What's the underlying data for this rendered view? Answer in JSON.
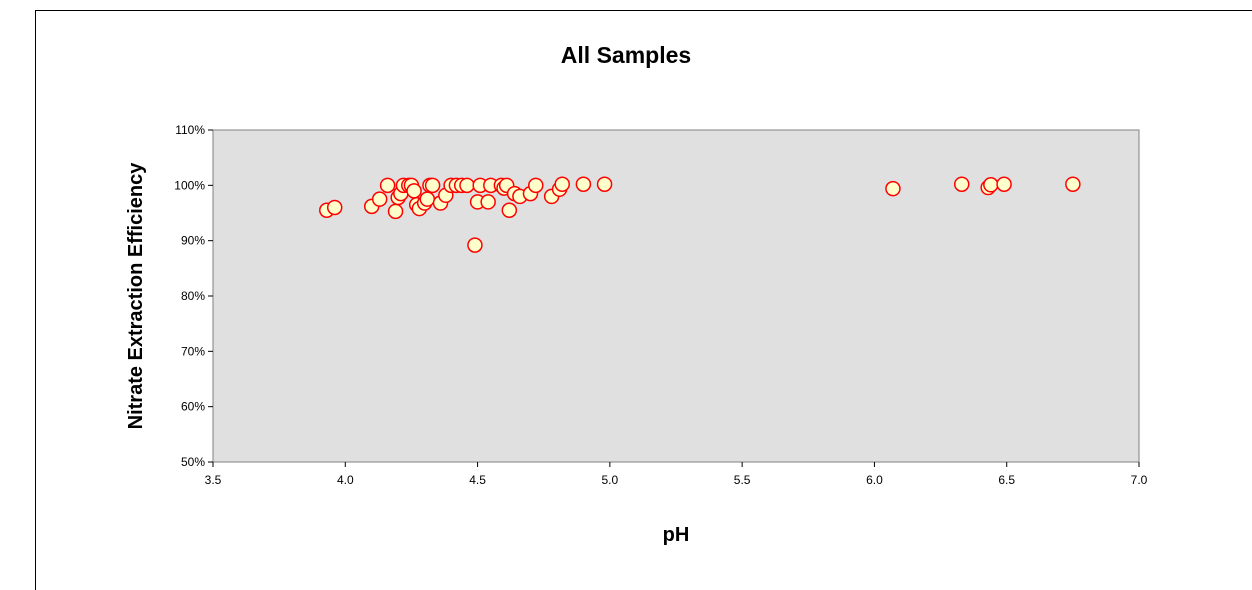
{
  "chart_data": {
    "type": "scatter",
    "title": "All Samples",
    "xlabel": "pH",
    "ylabel": "Nitrate Extraction Efficiency",
    "xlim": [
      3.5,
      7.0
    ],
    "ylim": [
      50,
      110
    ],
    "x_ticks": [
      "3.5",
      "4.0",
      "4.5",
      "5.0",
      "5.5",
      "6.0",
      "6.5",
      "7.0"
    ],
    "y_ticks": [
      "50%",
      "60%",
      "70%",
      "80%",
      "90%",
      "100%",
      "110%"
    ],
    "grid": false,
    "legend": "none",
    "colors": {
      "plot_background": "#e0e0e0",
      "marker_fill": "#ffffcc",
      "marker_edge": "#ff0000"
    },
    "points": [
      {
        "x": 3.93,
        "y": 95.5
      },
      {
        "x": 3.96,
        "y": 96.0
      },
      {
        "x": 4.1,
        "y": 96.2
      },
      {
        "x": 4.13,
        "y": 97.5
      },
      {
        "x": 4.16,
        "y": 100.0
      },
      {
        "x": 4.19,
        "y": 95.3
      },
      {
        "x": 4.2,
        "y": 97.8
      },
      {
        "x": 4.21,
        "y": 98.5
      },
      {
        "x": 4.22,
        "y": 100.0
      },
      {
        "x": 4.24,
        "y": 100.0
      },
      {
        "x": 4.25,
        "y": 100.0
      },
      {
        "x": 4.26,
        "y": 99.0
      },
      {
        "x": 4.27,
        "y": 96.5
      },
      {
        "x": 4.28,
        "y": 95.8
      },
      {
        "x": 4.3,
        "y": 96.8
      },
      {
        "x": 4.31,
        "y": 97.5
      },
      {
        "x": 4.32,
        "y": 100.0
      },
      {
        "x": 4.33,
        "y": 100.0
      },
      {
        "x": 4.36,
        "y": 96.8
      },
      {
        "x": 4.38,
        "y": 98.2
      },
      {
        "x": 4.4,
        "y": 100.0
      },
      {
        "x": 4.42,
        "y": 100.0
      },
      {
        "x": 4.44,
        "y": 100.0
      },
      {
        "x": 4.46,
        "y": 100.0
      },
      {
        "x": 4.49,
        "y": 89.2
      },
      {
        "x": 4.5,
        "y": 97.0
      },
      {
        "x": 4.51,
        "y": 100.0
      },
      {
        "x": 4.54,
        "y": 97.0
      },
      {
        "x": 4.55,
        "y": 100.0
      },
      {
        "x": 4.59,
        "y": 100.0
      },
      {
        "x": 4.6,
        "y": 99.5
      },
      {
        "x": 4.61,
        "y": 100.0
      },
      {
        "x": 4.62,
        "y": 95.5
      },
      {
        "x": 4.64,
        "y": 98.5
      },
      {
        "x": 4.66,
        "y": 98.0
      },
      {
        "x": 4.7,
        "y": 98.5
      },
      {
        "x": 4.72,
        "y": 100.0
      },
      {
        "x": 4.78,
        "y": 98.0
      },
      {
        "x": 4.81,
        "y": 99.3
      },
      {
        "x": 4.82,
        "y": 100.2
      },
      {
        "x": 4.9,
        "y": 100.2
      },
      {
        "x": 4.98,
        "y": 100.2
      },
      {
        "x": 6.07,
        "y": 99.4
      },
      {
        "x": 6.33,
        "y": 100.2
      },
      {
        "x": 6.43,
        "y": 99.6
      },
      {
        "x": 6.44,
        "y": 100.1
      },
      {
        "x": 6.49,
        "y": 100.2
      },
      {
        "x": 6.75,
        "y": 100.2
      }
    ]
  }
}
